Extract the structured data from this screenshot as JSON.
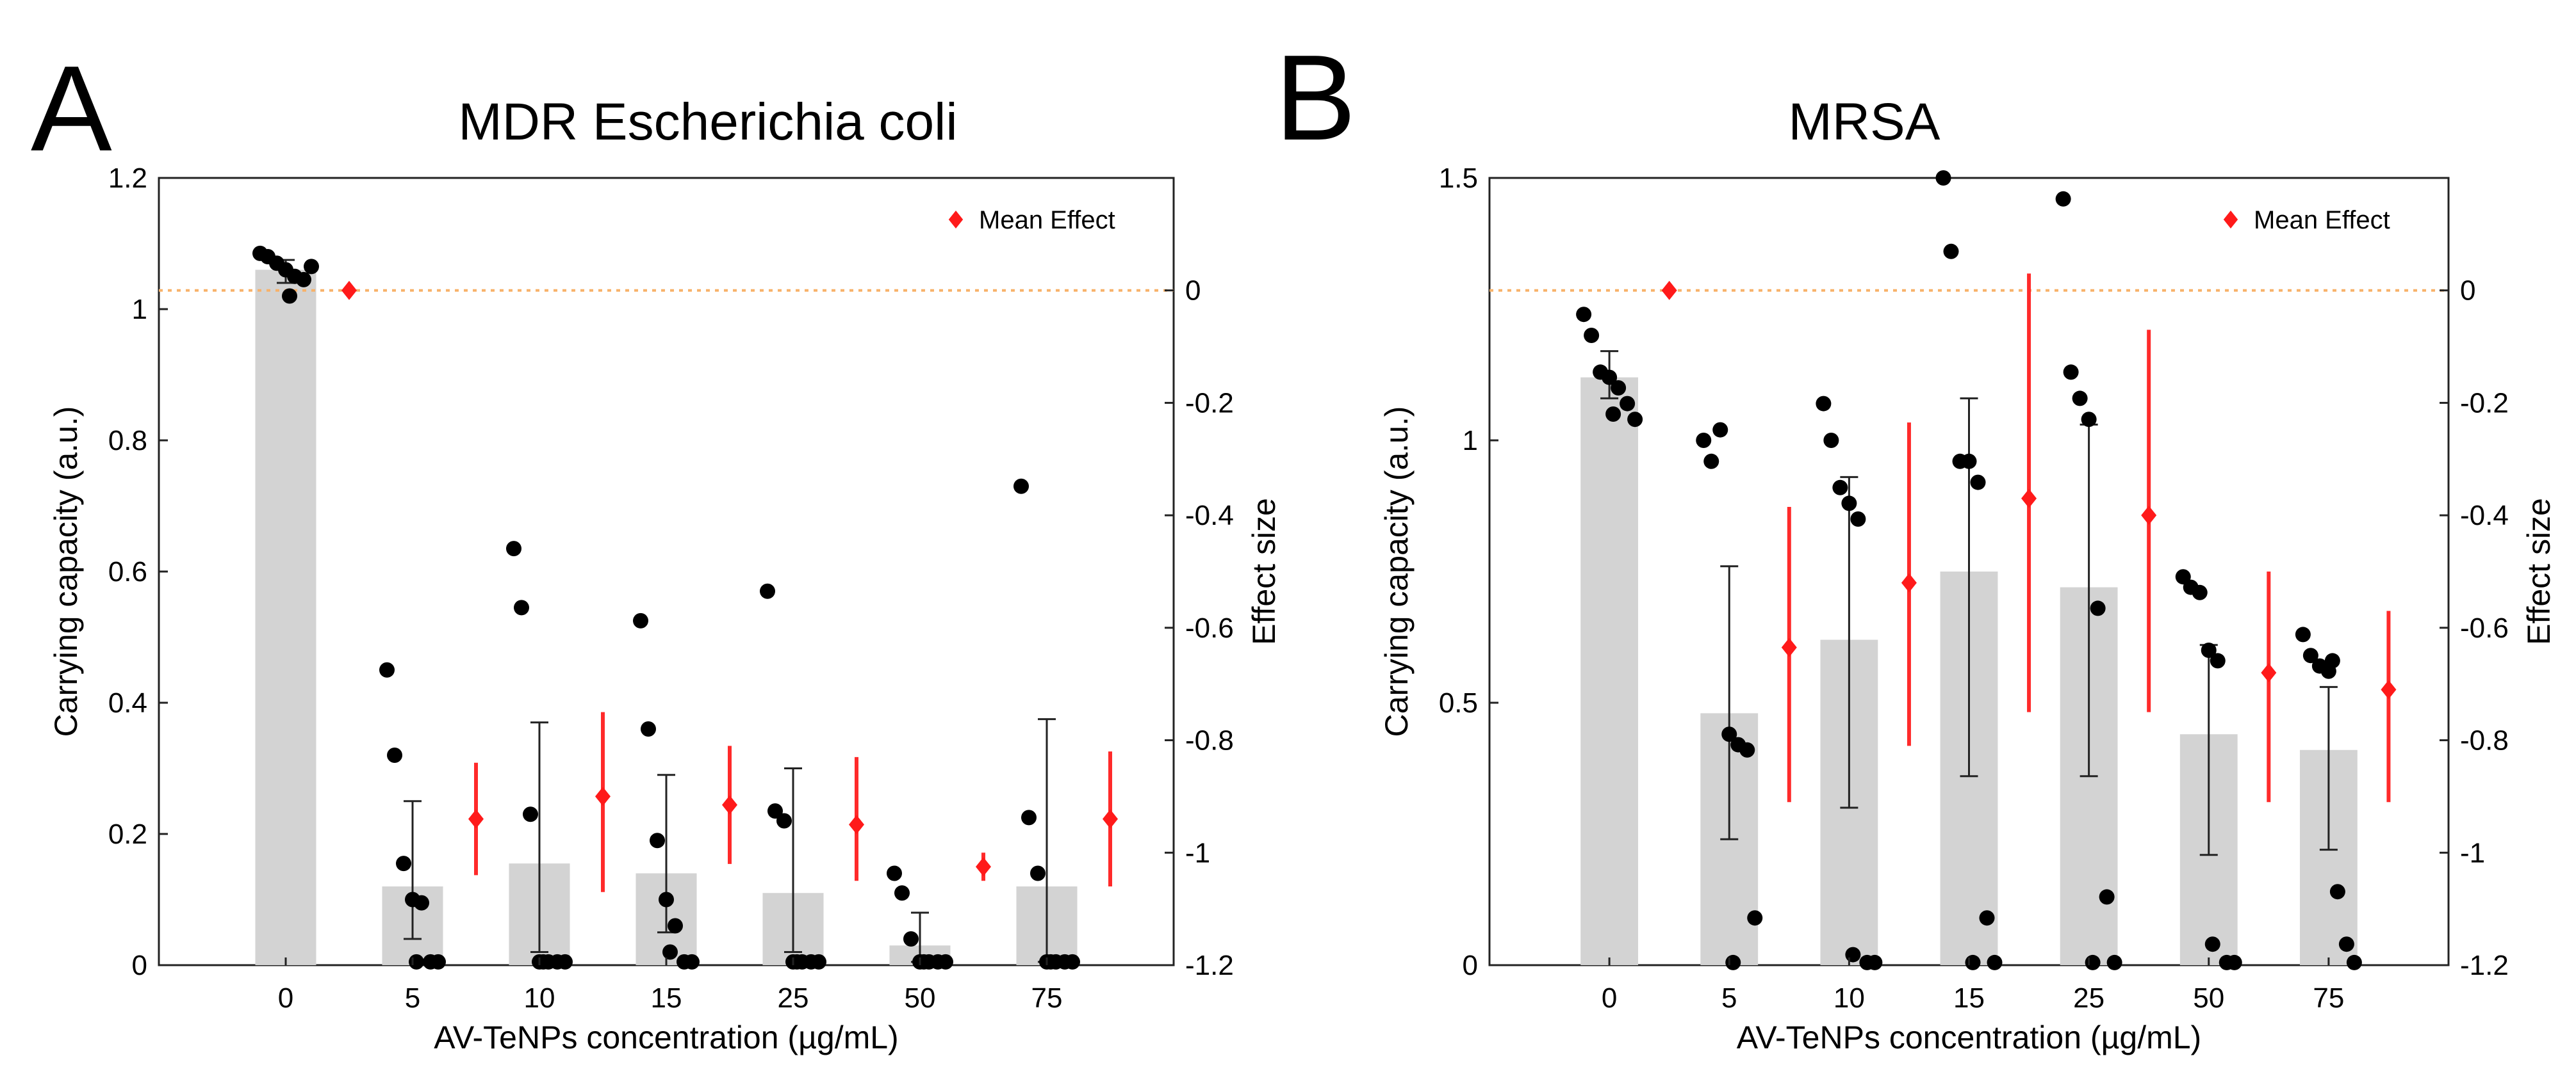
{
  "chart_data": [
    {
      "panel": "A",
      "type": "bar",
      "title": "MDR Escherichia coli",
      "xlabel": "AV-TeNPs concentration (µg/mL)",
      "ylabel": "Carrying capacity (a.u.)",
      "y2label": "Effect size",
      "categories": [
        "0",
        "5",
        "10",
        "15",
        "25",
        "50",
        "75"
      ],
      "ylim": [
        0,
        1.2
      ],
      "yticks": [
        0,
        0.2,
        0.4,
        0.6,
        0.8,
        1,
        1.2
      ],
      "ytick_labels": [
        "0",
        "0.2",
        "0.4",
        "0.6",
        "0.8",
        "1",
        "1.2"
      ],
      "y2lim": [
        -1.2,
        0.2
      ],
      "y2ticks": [
        0,
        -0.2,
        -0.4,
        -0.6,
        -0.8,
        -1,
        -1.2
      ],
      "y2tick_labels": [
        "0",
        "-0.2",
        "-0.4",
        "-0.6",
        "-0.8",
        "-1",
        "-1.2"
      ],
      "bar_values": [
        1.06,
        0.12,
        0.155,
        0.14,
        0.11,
        0.03,
        0.12
      ],
      "error_low": [
        1.04,
        0.04,
        0.02,
        0.05,
        0.02,
        0.005,
        0.005
      ],
      "error_high": [
        1.075,
        0.25,
        0.37,
        0.29,
        0.3,
        0.08,
        0.375
      ],
      "points": [
        [
          1.085,
          1.08,
          1.07,
          1.06,
          1.05,
          1.045,
          1.065,
          1.02
        ],
        [
          0.45,
          0.32,
          0.155,
          0.1,
          0.095,
          0.005,
          0.005,
          0.005
        ],
        [
          0.635,
          0.545,
          0.23,
          0.005,
          0.005,
          0.005,
          0.005,
          0.005
        ],
        [
          0.525,
          0.36,
          0.19,
          0.1,
          0.06,
          0.005,
          0.005,
          0.02
        ],
        [
          0.57,
          0.235,
          0.22,
          0.005,
          0.005,
          0.005,
          0.005,
          0.005
        ],
        [
          0.14,
          0.11,
          0.04,
          0.005,
          0.005,
          0.005,
          0.005,
          0.005
        ],
        [
          0.73,
          0.225,
          0.14,
          0.005,
          0.005,
          0.005,
          0.005,
          0.005
        ]
      ],
      "mean_effect": [
        0,
        -0.94,
        -0.9,
        -0.915,
        -0.95,
        -1.025,
        -0.94
      ],
      "mean_effect_ci_low": [
        0,
        -1.04,
        -1.07,
        -1.02,
        -1.05,
        -1.05,
        -1.06
      ],
      "mean_effect_ci_high": [
        0,
        -0.84,
        -0.75,
        -0.81,
        -0.83,
        -1.0,
        -0.82
      ],
      "reference_line": 0,
      "legend": "Mean Effect",
      "legend_position": "top-right"
    },
    {
      "panel": "B",
      "type": "bar",
      "title": "MRSA",
      "xlabel": "AV-TeNPs concentration (µg/mL)",
      "ylabel": "Carrying capacity (a.u.)",
      "y2label": "Effect size",
      "categories": [
        "0",
        "5",
        "10",
        "15",
        "25",
        "50",
        "75"
      ],
      "ylim": [
        0,
        1.5
      ],
      "yticks": [
        0,
        0.5,
        1,
        1.5
      ],
      "ytick_labels": [
        "0",
        "0.5",
        "1",
        "1.5"
      ],
      "y2lim": [
        -1.2,
        0.2
      ],
      "y2ticks": [
        0,
        -0.2,
        -0.4,
        -0.6,
        -0.8,
        -1,
        -1.2
      ],
      "y2tick_labels": [
        "0",
        "-0.2",
        "-0.4",
        "-0.6",
        "-0.8",
        "-1",
        "-1.2"
      ],
      "bar_values": [
        1.12,
        0.48,
        0.62,
        0.75,
        0.72,
        0.44,
        0.41
      ],
      "error_low": [
        1.08,
        0.24,
        0.3,
        0.36,
        0.36,
        0.21,
        0.22
      ],
      "error_high": [
        1.17,
        0.76,
        0.93,
        1.08,
        1.03,
        0.61,
        0.53
      ],
      "points": [
        [
          1.24,
          1.2,
          1.13,
          1.12,
          1.1,
          1.07,
          1.04,
          1.05
        ],
        [
          1.0,
          0.96,
          1.02,
          0.44,
          0.42,
          0.41,
          0.09,
          0.005
        ],
        [
          1.07,
          1.0,
          0.91,
          0.88,
          0.85,
          0.005,
          0.005,
          0.02
        ],
        [
          1.5,
          1.36,
          0.96,
          0.96,
          0.92,
          0.09,
          0.005,
          0.005
        ],
        [
          1.46,
          1.13,
          1.08,
          1.04,
          0.68,
          0.13,
          0.005,
          0.005
        ],
        [
          0.74,
          0.72,
          0.71,
          0.6,
          0.58,
          0.005,
          0.005,
          0.04
        ],
        [
          0.63,
          0.59,
          0.57,
          0.56,
          0.14,
          0.04,
          0.005,
          0.58
        ]
      ],
      "mean_effect": [
        0,
        -0.635,
        -0.52,
        -0.37,
        -0.4,
        -0.68,
        -0.71
      ],
      "mean_effect_ci_low": [
        0,
        -0.91,
        -0.81,
        -0.75,
        -0.75,
        -0.91,
        -0.91
      ],
      "mean_effect_ci_high": [
        0,
        -0.385,
        -0.235,
        0.03,
        -0.07,
        -0.5,
        -0.57
      ],
      "reference_line": 0,
      "legend": "Mean Effect",
      "legend_position": "top-right"
    }
  ]
}
